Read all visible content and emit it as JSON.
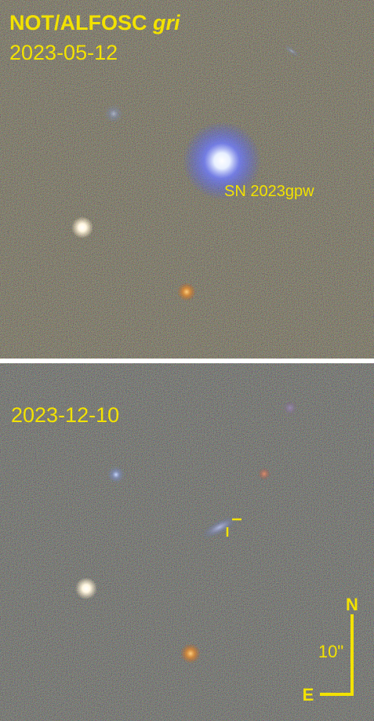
{
  "panels": [
    {
      "instrument": "NOT/ALFOSC",
      "filters": "gri",
      "date": "2023-05-12",
      "label": "SN 2023gpw"
    },
    {
      "date": "2023-12-10"
    }
  ],
  "compass": {
    "north": "N",
    "east": "E",
    "scale": "10\""
  }
}
